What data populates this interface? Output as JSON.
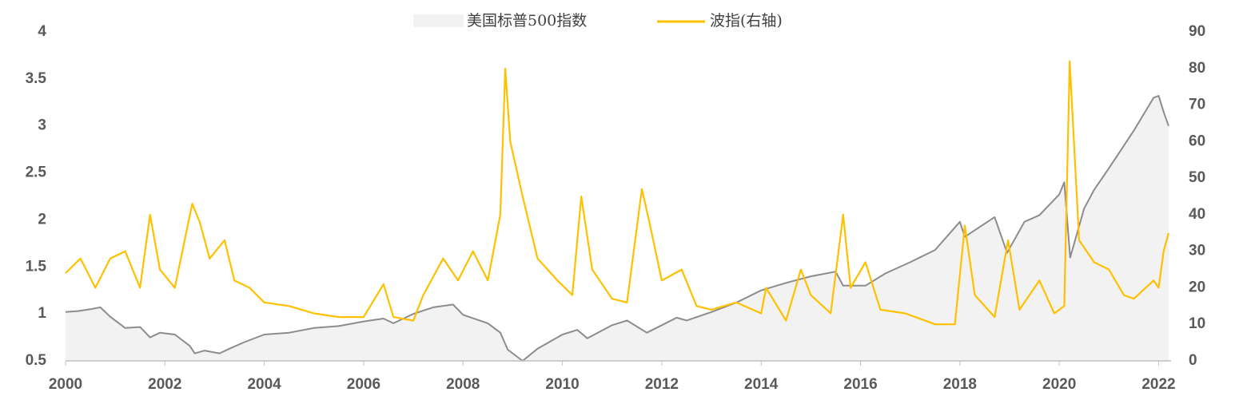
{
  "chart_data": {
    "type": "line",
    "xlim": [
      2000,
      2022.25
    ],
    "xticks": [
      2000,
      2002,
      2004,
      2006,
      2008,
      2010,
      2012,
      2014,
      2016,
      2018,
      2020,
      2022
    ],
    "ylim": [
      0.5,
      4
    ],
    "yticks": [
      0.5,
      1,
      1.5,
      2,
      2.5,
      3,
      3.5,
      4
    ],
    "y2lim": [
      0,
      90
    ],
    "y2ticks": [
      0,
      10,
      20,
      30,
      40,
      50,
      60,
      70,
      80,
      90
    ],
    "series": [
      {
        "name": "美国标普500指数",
        "color": "#8c8c8c",
        "fill": "#f2f2f2",
        "style": "area",
        "x": [
          2000.0,
          2000.25,
          2000.5,
          2000.7,
          2000.9,
          2001.2,
          2001.5,
          2001.7,
          2001.9,
          2002.2,
          2002.5,
          2002.6,
          2002.8,
          2003.1,
          2003.3,
          2003.6,
          2004.0,
          2004.5,
          2005.0,
          2005.5,
          2006.0,
          2006.4,
          2006.6,
          2007.0,
          2007.4,
          2007.8,
          2008.0,
          2008.5,
          2008.75,
          2008.9,
          2009.2,
          2009.5,
          2010.0,
          2010.3,
          2010.5,
          2011.0,
          2011.3,
          2011.7,
          2012.0,
          2012.3,
          2012.5,
          2013.0,
          2013.5,
          2014.0,
          2014.5,
          2015.0,
          2015.5,
          2015.65,
          2016.1,
          2016.5,
          2017.0,
          2017.5,
          2018.0,
          2018.1,
          2018.7,
          2018.95,
          2019.3,
          2019.6,
          2020.0,
          2020.1,
          2020.22,
          2020.5,
          2020.7,
          2021.0,
          2021.5,
          2021.9,
          2022.0,
          2022.1,
          2022.2
        ],
        "values": [
          1.02,
          1.03,
          1.05,
          1.07,
          0.97,
          0.85,
          0.86,
          0.75,
          0.8,
          0.78,
          0.66,
          0.58,
          0.61,
          0.58,
          0.63,
          0.7,
          0.78,
          0.8,
          0.85,
          0.87,
          0.92,
          0.95,
          0.9,
          1.0,
          1.07,
          1.1,
          0.99,
          0.9,
          0.8,
          0.62,
          0.5,
          0.63,
          0.78,
          0.83,
          0.74,
          0.88,
          0.93,
          0.8,
          0.88,
          0.96,
          0.93,
          1.02,
          1.12,
          1.25,
          1.33,
          1.4,
          1.45,
          1.3,
          1.3,
          1.43,
          1.55,
          1.68,
          1.98,
          1.82,
          2.03,
          1.65,
          1.98,
          2.05,
          2.27,
          2.4,
          1.6,
          2.12,
          2.32,
          2.55,
          2.95,
          3.3,
          3.32,
          3.15,
          3.0
        ]
      },
      {
        "name": "波指(右轴)",
        "color": "#ffc000",
        "axis": "y2",
        "x": [
          2000.0,
          2000.3,
          2000.6,
          2000.9,
          2001.2,
          2001.5,
          2001.7,
          2001.9,
          2002.2,
          2002.55,
          2002.7,
          2002.9,
          2003.2,
          2003.4,
          2003.7,
          2004.0,
          2004.5,
          2005.0,
          2005.5,
          2006.0,
          2006.4,
          2006.6,
          2007.0,
          2007.2,
          2007.6,
          2007.9,
          2008.2,
          2008.5,
          2008.75,
          2008.85,
          2008.95,
          2009.2,
          2009.5,
          2009.9,
          2010.2,
          2010.38,
          2010.6,
          2011.0,
          2011.3,
          2011.6,
          2011.75,
          2012.0,
          2012.4,
          2012.7,
          2013.0,
          2013.5,
          2014.0,
          2014.1,
          2014.5,
          2014.8,
          2015.0,
          2015.4,
          2015.65,
          2015.8,
          2016.1,
          2016.4,
          2016.9,
          2017.5,
          2017.9,
          2018.1,
          2018.3,
          2018.7,
          2018.97,
          2019.2,
          2019.6,
          2019.9,
          2020.1,
          2020.21,
          2020.4,
          2020.7,
          2021.0,
          2021.3,
          2021.5,
          2021.9,
          2022.0,
          2022.1,
          2022.2
        ],
        "values": [
          24,
          28,
          20,
          28,
          30,
          20,
          40,
          25,
          20,
          43,
          38,
          28,
          33,
          22,
          20,
          16,
          15,
          13,
          12,
          12,
          21,
          12,
          11,
          18,
          28,
          22,
          30,
          22,
          40,
          80,
          60,
          45,
          28,
          22,
          18,
          45,
          25,
          17,
          16,
          47,
          38,
          22,
          25,
          15,
          14,
          16,
          13,
          20,
          11,
          25,
          18,
          13,
          40,
          20,
          27,
          14,
          13,
          10,
          10,
          37,
          18,
          12,
          33,
          14,
          22,
          13,
          15,
          82,
          33,
          27,
          25,
          18,
          17,
          22,
          20,
          30,
          35
        ]
      }
    ]
  }
}
